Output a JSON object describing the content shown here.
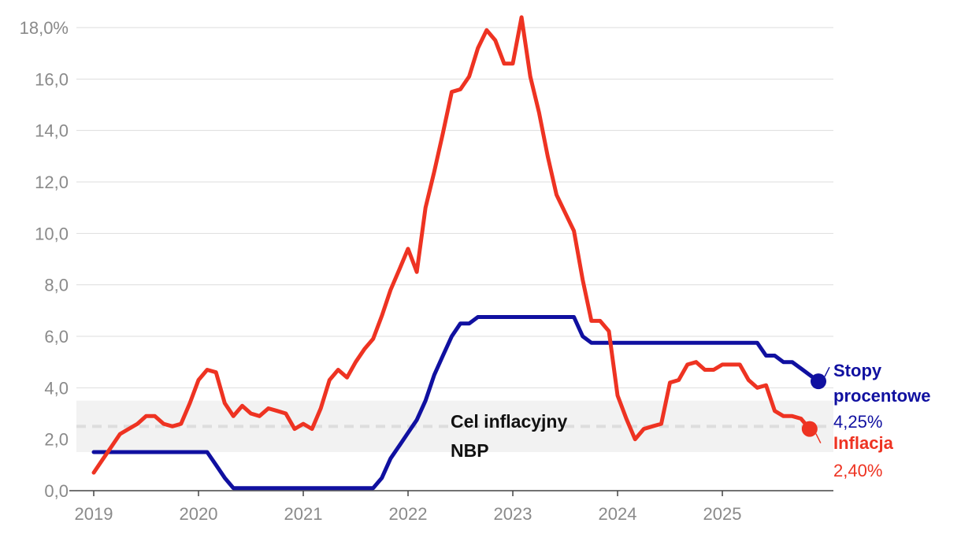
{
  "chart_data": {
    "type": "line",
    "title": "",
    "xlabel": "",
    "ylabel": "",
    "x_range": [
      2019.0,
      2025.917
    ],
    "ylim": [
      0,
      18
    ],
    "y_ticks": [
      {
        "value": 0,
        "label": "0,0"
      },
      {
        "value": 2,
        "label": "2,0"
      },
      {
        "value": 4,
        "label": "4,0"
      },
      {
        "value": 6,
        "label": "6,0"
      },
      {
        "value": 8,
        "label": "8,0"
      },
      {
        "value": 10,
        "label": "10,0"
      },
      {
        "value": 12,
        "label": "12,0"
      },
      {
        "value": 14,
        "label": "14,0"
      },
      {
        "value": 16,
        "label": "16,0"
      },
      {
        "value": 18,
        "label": "18,0%"
      }
    ],
    "x_ticks": [
      {
        "value": 2019,
        "label": "2019"
      },
      {
        "value": 2020,
        "label": "2020"
      },
      {
        "value": 2021,
        "label": "2021"
      },
      {
        "value": 2022,
        "label": "2022"
      },
      {
        "value": 2023,
        "label": "2023"
      },
      {
        "value": 2024,
        "label": "2024"
      },
      {
        "value": 2025,
        "label": "2025"
      }
    ],
    "target_band": {
      "low": 1.5,
      "high": 3.5,
      "center": 2.5,
      "label_line1": "Cel inflacyjny",
      "label_line2": "NBP",
      "color": "#f2f2f2",
      "line_color": "#dddddd"
    },
    "series": [
      {
        "name": "Stopy procentowe",
        "label_line1": "Stopy",
        "label_line2": "procentowe",
        "value_label": "4,25%",
        "color": "#1010a0",
        "points": [
          [
            2019.0,
            1.5
          ],
          [
            2020.083,
            1.5
          ],
          [
            2020.167,
            1.0
          ],
          [
            2020.25,
            0.5
          ],
          [
            2020.333,
            0.1
          ],
          [
            2021.667,
            0.1
          ],
          [
            2021.75,
            0.5
          ],
          [
            2021.833,
            1.25
          ],
          [
            2021.917,
            1.75
          ],
          [
            2022.0,
            2.25
          ],
          [
            2022.083,
            2.75
          ],
          [
            2022.167,
            3.5
          ],
          [
            2022.25,
            4.5
          ],
          [
            2022.333,
            5.25
          ],
          [
            2022.417,
            6.0
          ],
          [
            2022.5,
            6.5
          ],
          [
            2022.583,
            6.5
          ],
          [
            2022.667,
            6.75
          ],
          [
            2023.583,
            6.75
          ],
          [
            2023.667,
            6.0
          ],
          [
            2023.75,
            5.75
          ],
          [
            2025.333,
            5.75
          ],
          [
            2025.417,
            5.25
          ],
          [
            2025.5,
            5.25
          ],
          [
            2025.583,
            5.0
          ],
          [
            2025.667,
            5.0
          ],
          [
            2025.75,
            4.75
          ],
          [
            2025.833,
            4.5
          ],
          [
            2025.917,
            4.25
          ]
        ]
      },
      {
        "name": "Inflacja",
        "label_line1": "Inflacja",
        "value_label": "2,40%",
        "color": "#ee3322",
        "points": [
          [
            2019.0,
            0.7
          ],
          [
            2019.083,
            1.2
          ],
          [
            2019.167,
            1.7
          ],
          [
            2019.25,
            2.2
          ],
          [
            2019.333,
            2.4
          ],
          [
            2019.417,
            2.6
          ],
          [
            2019.5,
            2.9
          ],
          [
            2019.583,
            2.9
          ],
          [
            2019.667,
            2.6
          ],
          [
            2019.75,
            2.5
          ],
          [
            2019.833,
            2.6
          ],
          [
            2019.917,
            3.4
          ],
          [
            2020.0,
            4.3
          ],
          [
            2020.083,
            4.7
          ],
          [
            2020.167,
            4.6
          ],
          [
            2020.25,
            3.4
          ],
          [
            2020.333,
            2.9
          ],
          [
            2020.417,
            3.3
          ],
          [
            2020.5,
            3.0
          ],
          [
            2020.583,
            2.9
          ],
          [
            2020.667,
            3.2
          ],
          [
            2020.75,
            3.1
          ],
          [
            2020.833,
            3.0
          ],
          [
            2020.917,
            2.4
          ],
          [
            2021.0,
            2.6
          ],
          [
            2021.083,
            2.4
          ],
          [
            2021.167,
            3.2
          ],
          [
            2021.25,
            4.3
          ],
          [
            2021.333,
            4.7
          ],
          [
            2021.417,
            4.4
          ],
          [
            2021.5,
            5.0
          ],
          [
            2021.583,
            5.5
          ],
          [
            2021.667,
            5.9
          ],
          [
            2021.75,
            6.8
          ],
          [
            2021.833,
            7.8
          ],
          [
            2021.917,
            8.6
          ],
          [
            2022.0,
            9.4
          ],
          [
            2022.083,
            8.5
          ],
          [
            2022.167,
            11.0
          ],
          [
            2022.25,
            12.4
          ],
          [
            2022.333,
            13.9
          ],
          [
            2022.417,
            15.5
          ],
          [
            2022.5,
            15.6
          ],
          [
            2022.583,
            16.1
          ],
          [
            2022.667,
            17.2
          ],
          [
            2022.75,
            17.9
          ],
          [
            2022.833,
            17.5
          ],
          [
            2022.917,
            16.6
          ],
          [
            2023.0,
            16.6
          ],
          [
            2023.083,
            18.4
          ],
          [
            2023.167,
            16.1
          ],
          [
            2023.25,
            14.7
          ],
          [
            2023.333,
            13.0
          ],
          [
            2023.417,
            11.5
          ],
          [
            2023.5,
            10.8
          ],
          [
            2023.583,
            10.1
          ],
          [
            2023.667,
            8.2
          ],
          [
            2023.75,
            6.6
          ],
          [
            2023.833,
            6.6
          ],
          [
            2023.917,
            6.2
          ],
          [
            2024.0,
            3.7
          ],
          [
            2024.083,
            2.8
          ],
          [
            2024.167,
            2.0
          ],
          [
            2024.25,
            2.4
          ],
          [
            2024.333,
            2.5
          ],
          [
            2024.417,
            2.6
          ],
          [
            2024.5,
            4.2
          ],
          [
            2024.583,
            4.3
          ],
          [
            2024.667,
            4.9
          ],
          [
            2024.75,
            5.0
          ],
          [
            2024.833,
            4.7
          ],
          [
            2024.917,
            4.7
          ],
          [
            2025.0,
            4.9
          ],
          [
            2025.083,
            4.9
          ],
          [
            2025.167,
            4.9
          ],
          [
            2025.25,
            4.3
          ],
          [
            2025.333,
            4.0
          ],
          [
            2025.417,
            4.1
          ],
          [
            2025.5,
            3.1
          ],
          [
            2025.583,
            2.9
          ],
          [
            2025.667,
            2.9
          ],
          [
            2025.75,
            2.8
          ],
          [
            2025.833,
            2.4
          ]
        ]
      }
    ]
  }
}
